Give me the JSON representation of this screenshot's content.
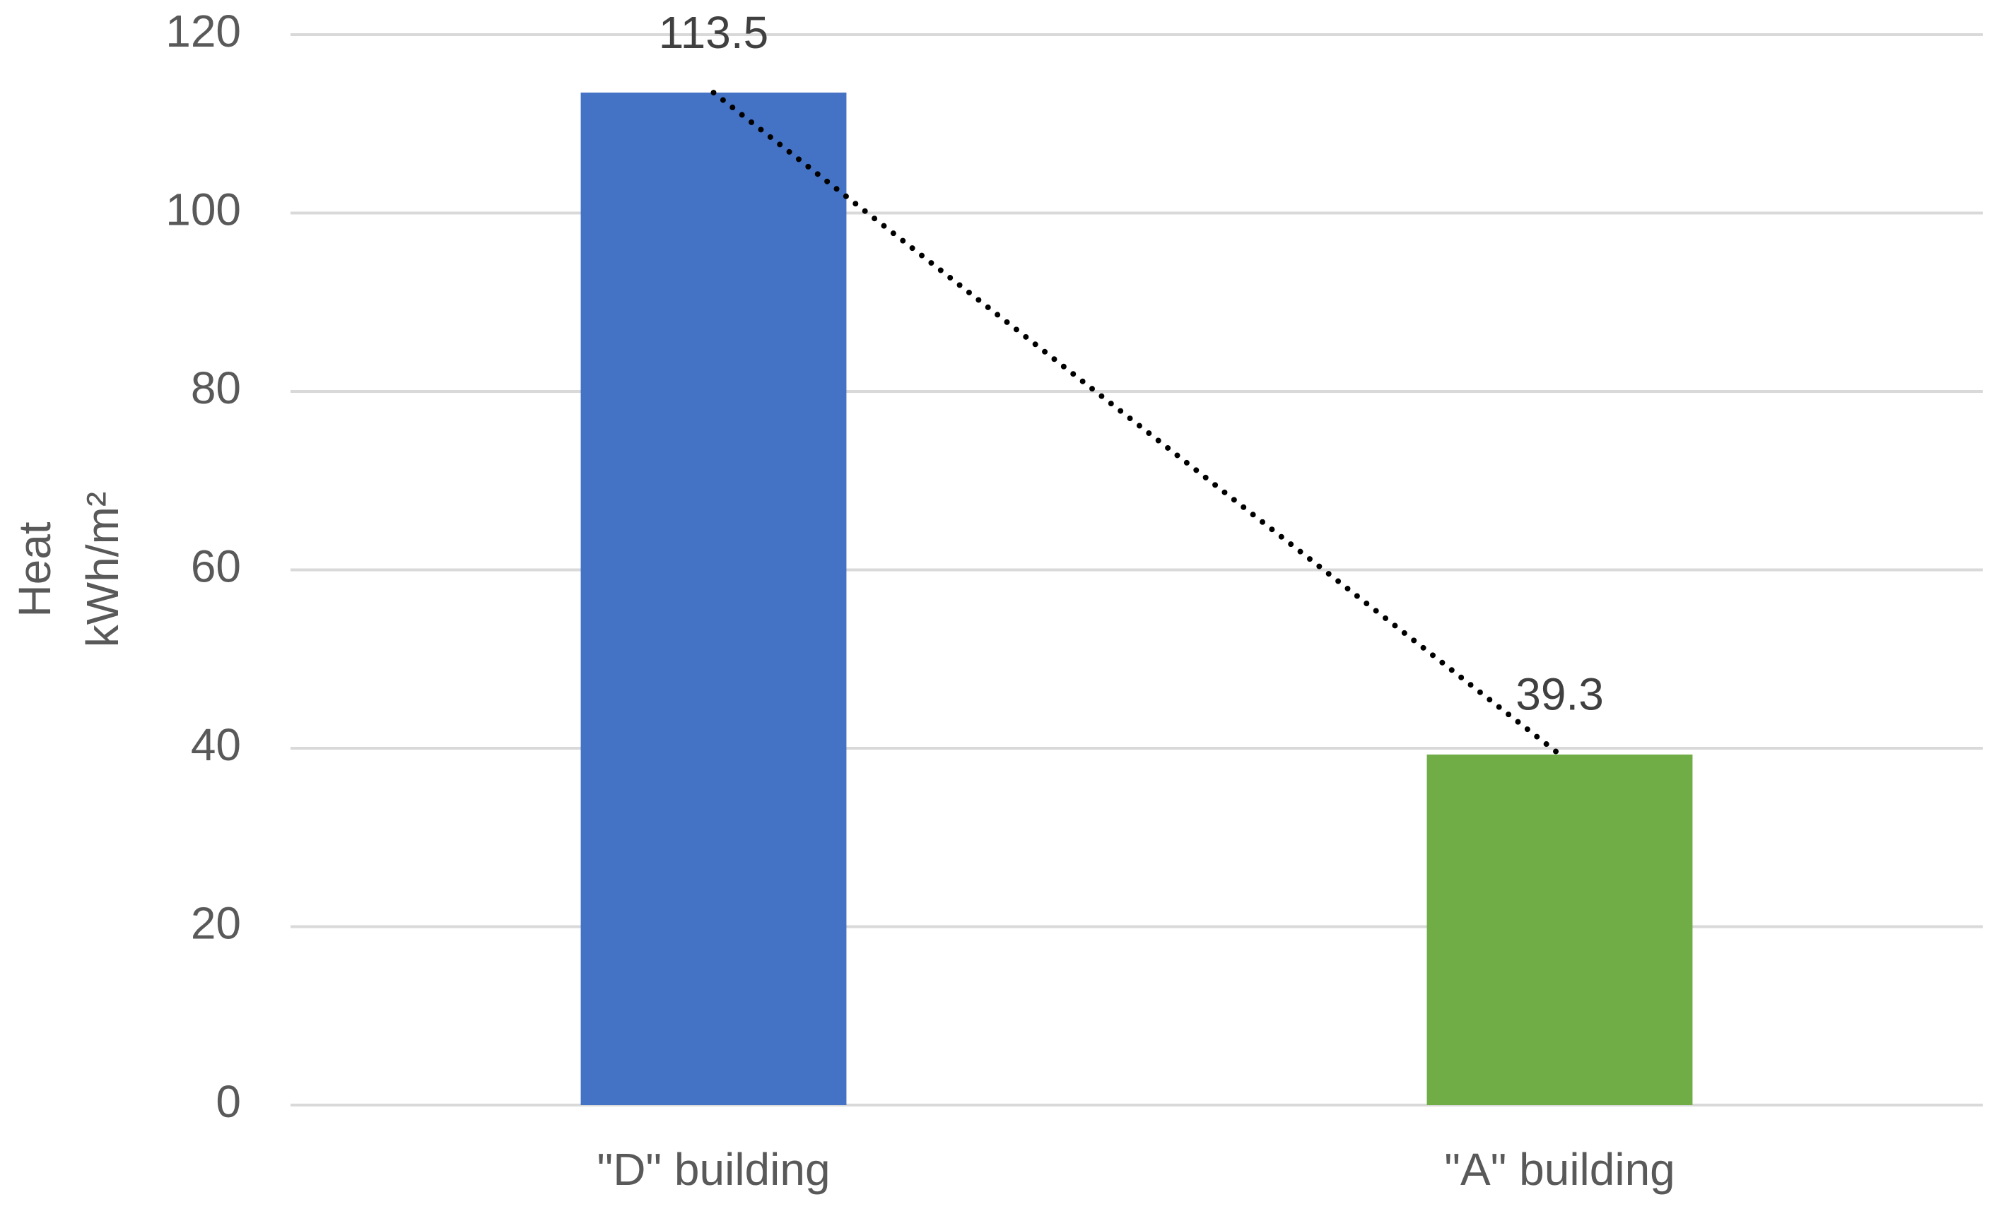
{
  "chart_data": {
    "type": "bar",
    "y_label": [
      "Heat",
      "kWh/m²"
    ],
    "categories": [
      "\"D\" building",
      "\"A\" building"
    ],
    "values": [
      113.5,
      39.3
    ],
    "colors": [
      "#4472c4",
      "#70ad47"
    ],
    "ylim": [
      0,
      120
    ],
    "yticks": [
      0,
      20,
      40,
      60,
      80,
      100,
      120
    ],
    "grid": true,
    "data_labels": true,
    "trendline": true
  }
}
